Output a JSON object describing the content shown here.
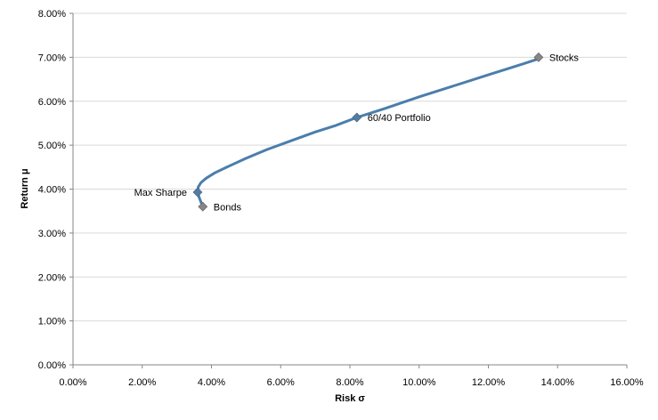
{
  "chart_data": {
    "type": "scatter",
    "title": "",
    "xlabel": "Risk σ",
    "ylabel": "Return μ",
    "xlim": [
      0,
      16
    ],
    "ylim": [
      0,
      8
    ],
    "x_ticks": [
      "0.00%",
      "2.00%",
      "4.00%",
      "6.00%",
      "8.00%",
      "10.00%",
      "12.00%",
      "14.00%",
      "16.00%"
    ],
    "y_ticks": [
      "0.00%",
      "1.00%",
      "2.00%",
      "3.00%",
      "4.00%",
      "5.00%",
      "6.00%",
      "7.00%",
      "8.00%"
    ],
    "grid": "horizontal",
    "frontier": {
      "color": "#4a7eac",
      "x": [
        3.75,
        3.7,
        3.65,
        3.6,
        3.62,
        3.7,
        3.85,
        4.1,
        4.5,
        5.0,
        5.6,
        6.3,
        7.0,
        7.6,
        8.2,
        9.0,
        10.0,
        11.0,
        12.0,
        13.0,
        13.5
      ],
      "y": [
        3.62,
        3.7,
        3.8,
        3.93,
        4.05,
        4.15,
        4.25,
        4.37,
        4.52,
        4.7,
        4.9,
        5.1,
        5.3,
        5.45,
        5.63,
        5.83,
        6.1,
        6.35,
        6.6,
        6.85,
        6.98
      ]
    },
    "points": [
      {
        "label": "Stocks",
        "x": 13.45,
        "y": 7.0,
        "color": "#868686",
        "label_side": "right"
      },
      {
        "label": "60/40 Portfolio",
        "x": 8.2,
        "y": 5.63,
        "color": "#4a7eac",
        "label_side": "right"
      },
      {
        "label": "Max Sharpe",
        "x": 3.6,
        "y": 3.93,
        "color": "#4a7eac",
        "label_side": "left"
      },
      {
        "label": "Bonds",
        "x": 3.75,
        "y": 3.6,
        "color": "#868686",
        "label_side": "right"
      }
    ]
  }
}
